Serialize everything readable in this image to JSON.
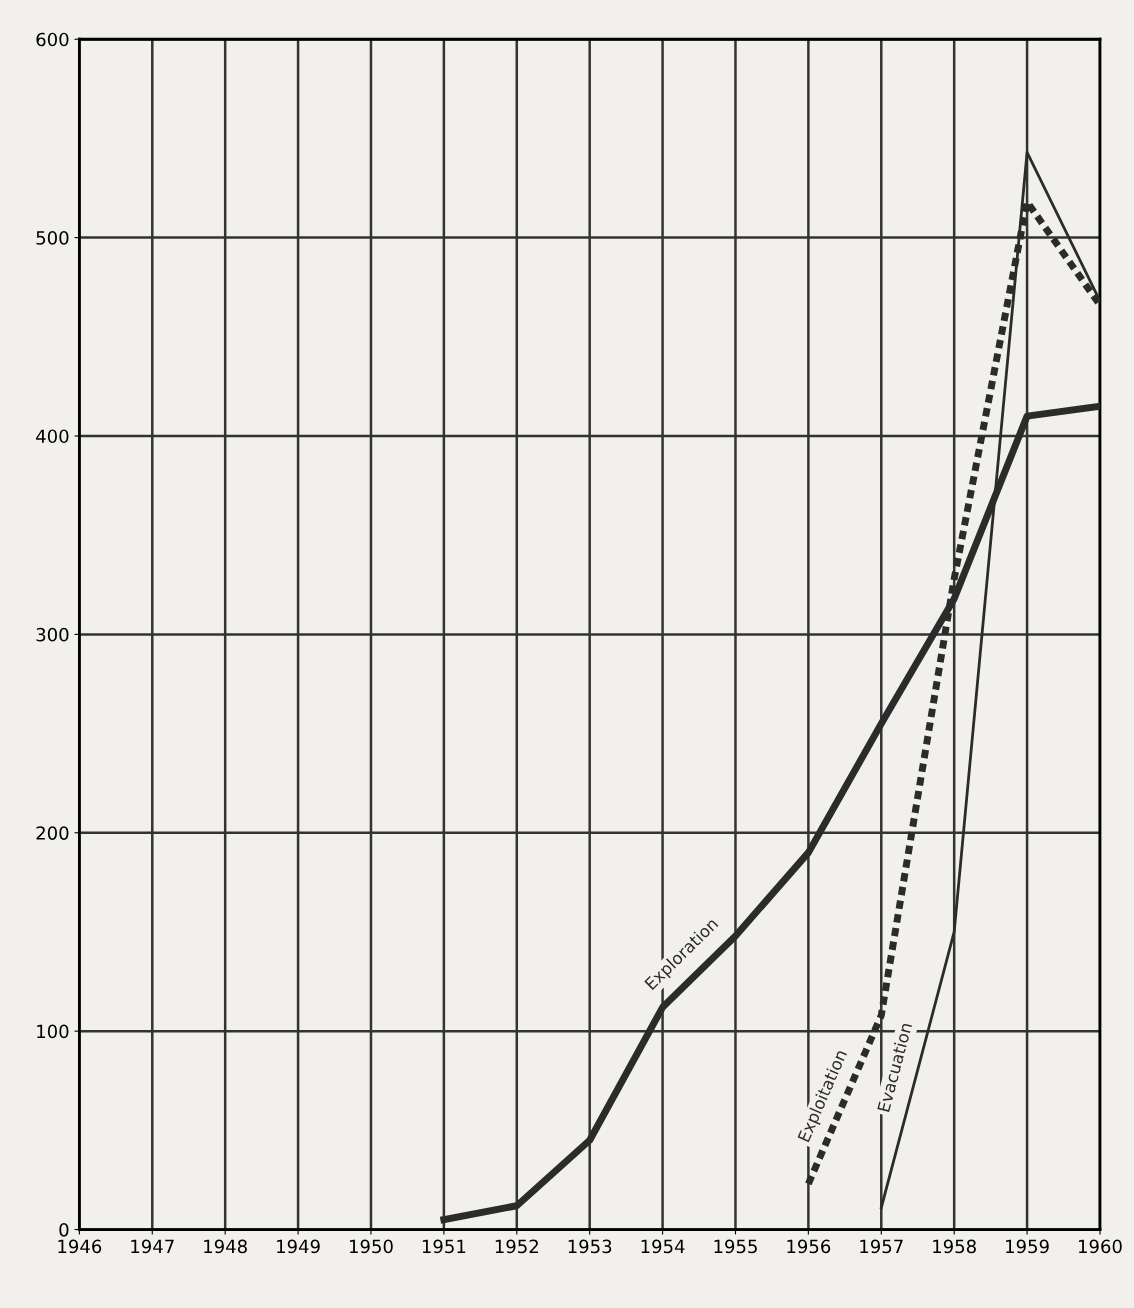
{
  "chart_data": {
    "type": "line",
    "series": [
      {
        "name": "Exploration",
        "color": "#2b2b2b",
        "line_style": "solid",
        "x": [
          1951,
          1952,
          1953,
          1954,
          1955,
          1956,
          1957,
          1958,
          1959,
          1960
        ],
        "values": [
          5,
          12,
          45,
          112,
          148,
          190,
          255,
          318,
          410,
          415
        ]
      },
      {
        "name": "Exploitation",
        "color": "#2b2b2b",
        "line_style": "dashed",
        "x": [
          1956,
          1957,
          1958,
          1959,
          1960
        ],
        "values": [
          23,
          108,
          328,
          518,
          466
        ]
      },
      {
        "name": "Evacuation",
        "color": "#2b2b2b",
        "line_style": "solid",
        "x": [
          1957,
          1958,
          1959,
          1960
        ],
        "values": [
          11,
          150,
          543,
          468
        ]
      }
    ],
    "xlim": [
      1946,
      1960
    ],
    "xticks": [
      1946,
      1947,
      1948,
      1949,
      1950,
      1951,
      1952,
      1953,
      1954,
      1955,
      1956,
      1957,
      1958,
      1959,
      1960
    ],
    "ylim": [
      0,
      600
    ],
    "yticks": [
      0,
      100,
      200,
      300,
      400,
      500,
      600
    ],
    "grid": true,
    "marker": "none"
  }
}
